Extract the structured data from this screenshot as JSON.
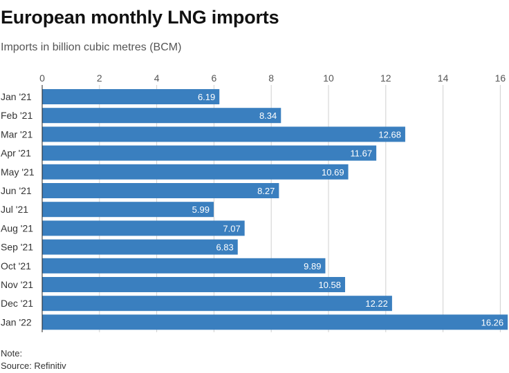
{
  "title": "European monthly LNG imports",
  "subtitle": "Imports in billion cubic metres (BCM)",
  "note_label": "Note:",
  "source_label": "Source: Refinitiv",
  "colors": {
    "bar": "#3a7fbf",
    "grid": "#cfcfcf",
    "axis": "#222222"
  },
  "chart_data": {
    "type": "bar",
    "orientation": "horizontal",
    "title": "European monthly LNG imports",
    "subtitle": "Imports in billion cubic metres (BCM)",
    "xlim": [
      0,
      16
    ],
    "ticks": [
      0,
      2,
      4,
      6,
      8,
      10,
      12,
      14,
      16
    ],
    "tick_position": "top",
    "grid": true,
    "categories": [
      "Jan '21",
      "Feb '21",
      "Mar '21",
      "Apr '21",
      "May '21",
      "Jun '21",
      "Jul '21",
      "Aug '21",
      "Sep '21",
      "Oct '21",
      "Nov '21",
      "Dec '21",
      "Jan '22"
    ],
    "values": [
      6.19,
      8.34,
      12.68,
      11.67,
      10.69,
      8.27,
      5.99,
      7.07,
      6.83,
      9.89,
      10.58,
      12.22,
      16.26
    ],
    "value_labels": [
      "6.19",
      "8.34",
      "12.68",
      "11.67",
      "10.69",
      "8.27",
      "5.99",
      "7.07",
      "6.83",
      "9.89",
      "10.58",
      "12.22",
      "16.26"
    ]
  }
}
